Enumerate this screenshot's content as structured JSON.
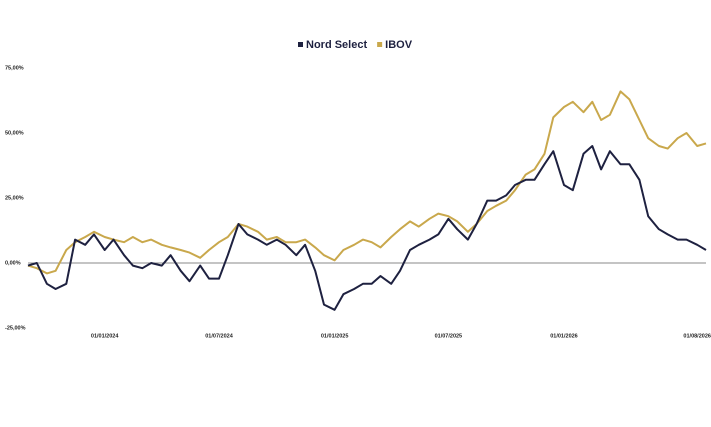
{
  "chart_data": {
    "type": "line",
    "x": [
      "01/09/2023",
      "15/09/2023",
      "01/10/2023",
      "15/10/2023",
      "01/11/2023",
      "15/11/2023",
      "01/12/2023",
      "15/12/2023",
      "01/01/2024",
      "15/01/2024",
      "01/02/2024",
      "15/02/2024",
      "01/03/2024",
      "15/03/2024",
      "01/04/2024",
      "15/04/2024",
      "01/05/2024",
      "15/05/2024",
      "01/06/2024",
      "15/06/2024",
      "01/07/2024",
      "15/07/2024",
      "01/08/2024",
      "15/08/2024",
      "01/09/2024",
      "15/09/2024",
      "01/10/2024",
      "15/10/2024",
      "01/11/2024",
      "15/11/2024",
      "01/12/2024",
      "15/12/2024",
      "01/01/2025",
      "15/01/2025",
      "01/02/2025",
      "15/02/2025",
      "01/03/2025",
      "15/03/2025",
      "01/04/2025",
      "15/04/2025",
      "01/05/2025",
      "15/05/2025",
      "01/06/2025",
      "15/06/2025",
      "01/07/2025",
      "15/07/2025",
      "01/08/2025",
      "15/08/2025",
      "01/09/2025",
      "15/09/2025",
      "01/10/2025",
      "15/10/2025",
      "01/11/2025",
      "15/11/2025",
      "01/12/2025",
      "15/12/2025",
      "01/01/2026",
      "15/01/2026",
      "01/02/2026",
      "15/02/2026",
      "01/03/2026",
      "15/03/2026",
      "01/04/2026",
      "15/04/2026",
      "01/05/2026",
      "15/05/2026",
      "01/06/2026",
      "15/06/2026",
      "01/07/2026",
      "15/07/2026",
      "01/08/2026",
      "15/08/2026"
    ],
    "series": [
      {
        "name": "Nord Select",
        "color": "#1e2140",
        "values": [
          -1,
          0,
          -8,
          -10,
          -8,
          9,
          7,
          11,
          5,
          9,
          3,
          -1,
          -2,
          0,
          -1,
          3,
          -3,
          -7,
          -1,
          -6,
          -6,
          3,
          15,
          11,
          9,
          7,
          9,
          7,
          3,
          7,
          -3,
          -16,
          -18,
          -12,
          -10,
          -8,
          -8,
          -5,
          -8,
          -3,
          5,
          7,
          9,
          11,
          17,
          13,
          9,
          15,
          24,
          24,
          26,
          30,
          32,
          32,
          38,
          43,
          30,
          28,
          42,
          45,
          36,
          43,
          38,
          38,
          32,
          18,
          13,
          11,
          9,
          9,
          7,
          5
        ]
      },
      {
        "name": "IBOV",
        "color": "#c9a84c",
        "values": [
          -1,
          -2,
          -4,
          -3,
          5,
          8,
          10,
          12,
          10,
          9,
          8,
          10,
          8,
          9,
          7,
          6,
          5,
          4,
          2,
          5,
          8,
          10,
          15,
          14,
          12,
          9,
          10,
          8,
          8,
          9,
          6,
          3,
          1,
          5,
          7,
          9,
          8,
          6,
          10,
          13,
          16,
          14,
          17,
          19,
          18,
          16,
          12,
          15,
          20,
          22,
          24,
          28,
          34,
          36,
          42,
          56,
          60,
          62,
          58,
          62,
          55,
          57,
          66,
          63,
          55,
          48,
          45,
          44,
          48,
          50,
          45,
          46
        ]
      }
    ],
    "xlim": [
      "01/09/2023",
      "15/08/2026"
    ],
    "xticks": [
      "01/01/2024",
      "01/07/2024",
      "01/01/2025",
      "01/07/2025",
      "01/01/2026",
      "01/08/2026"
    ],
    "ylim": [
      -25,
      75
    ],
    "yticks": [
      {
        "value": -25,
        "label": "-25,00%"
      },
      {
        "value": 0,
        "label": "0,00%"
      },
      {
        "value": 25,
        "label": "25,00%"
      },
      {
        "value": 50,
        "label": "50,00%"
      },
      {
        "value": 75,
        "label": "75,00%"
      }
    ],
    "legend": "top"
  }
}
